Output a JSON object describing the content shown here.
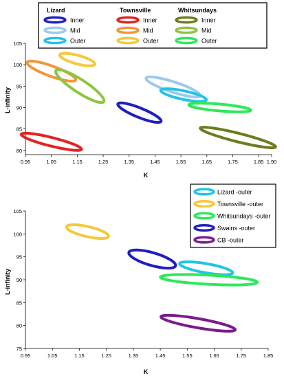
{
  "chart_data": [
    {
      "type": "scatter",
      "xlabel": "K",
      "ylabel": "L-infinity",
      "xlim": [
        0.95,
        1.9
      ],
      "ylim": [
        79,
        105
      ],
      "xticks": [
        "0.95",
        "1.05",
        "1.15",
        "1.25",
        "1.35",
        "1.45",
        "1.55",
        "1.65",
        "1.75",
        "1.85",
        "1.90"
      ],
      "yticks": [
        "80",
        "85",
        "90",
        "95",
        "100",
        "105"
      ],
      "legend": {
        "placement": "top",
        "groups": [
          {
            "title": "Lizard",
            "items": [
              {
                "label": "Inner",
                "color": "#1f1fbf"
              },
              {
                "label": "Mid",
                "color": "#9ec9ee"
              },
              {
                "label": "Outer",
                "color": "#22c4e6"
              }
            ]
          },
          {
            "title": "Townsville",
            "items": [
              {
                "label": "Inner",
                "color": "#e32222"
              },
              {
                "label": "Mid",
                "color": "#f0963a"
              },
              {
                "label": "Outer",
                "color": "#f5c93c"
              }
            ]
          },
          {
            "title": "Whitsundays",
            "items": [
              {
                "label": "Inner",
                "color": "#6b7d1e"
              },
              {
                "label": "Mid",
                "color": "#8cc63f"
              },
              {
                "label": "Outer",
                "color": "#2ee85a"
              }
            ]
          }
        ]
      },
      "series": [
        {
          "label": "Lizard Inner",
          "color": "#1f1fbf",
          "cx": 1.39,
          "cy": 88.8,
          "rx": 0.09,
          "ry": 1.1,
          "angle": 22
        },
        {
          "label": "Lizard Mid",
          "color": "#9ec9ee",
          "cx": 1.52,
          "cy": 94.8,
          "rx": 0.11,
          "ry": 1.2,
          "angle": 18
        },
        {
          "label": "Lizard Outer",
          "color": "#22c4e6",
          "cx": 1.56,
          "cy": 92.9,
          "rx": 0.09,
          "ry": 1.0,
          "angle": 12
        },
        {
          "label": "Townsville Inner",
          "color": "#e32222",
          "cx": 1.05,
          "cy": 82.0,
          "rx": 0.12,
          "ry": 1.0,
          "angle": 14
        },
        {
          "label": "Townsville Mid",
          "color": "#f0963a",
          "cx": 1.05,
          "cy": 98.5,
          "rx": 0.1,
          "ry": 1.2,
          "angle": 20
        },
        {
          "label": "Townsville Outer",
          "color": "#f5c93c",
          "cx": 1.15,
          "cy": 101.2,
          "rx": 0.07,
          "ry": 1.0,
          "angle": 15
        },
        {
          "label": "Whitsundays Inner",
          "color": "#6b7d1e",
          "cx": 1.77,
          "cy": 83.0,
          "rx": 0.15,
          "ry": 1.0,
          "angle": 14
        },
        {
          "label": "Whitsundays Mid",
          "color": "#8cc63f",
          "cx": 1.16,
          "cy": 95.0,
          "rx": 0.11,
          "ry": 1.5,
          "angle": 33
        },
        {
          "label": "Whitsundays Outer",
          "color": "#2ee85a",
          "cx": 1.7,
          "cy": 90.0,
          "rx": 0.12,
          "ry": 0.8,
          "angle": 5
        }
      ]
    },
    {
      "type": "scatter",
      "xlabel": "K",
      "ylabel": "L-infinity",
      "xlim": [
        0.95,
        1.85
      ],
      "ylim": [
        75,
        105
      ],
      "xticks": [
        "0.95",
        "1.05",
        "1.15",
        "1.25",
        "1.35",
        "1.45",
        "1.55",
        "1.65",
        "1.75",
        "1.85"
      ],
      "yticks": [
        "75",
        "80",
        "85",
        "90",
        "95",
        "100",
        "105"
      ],
      "legend": {
        "placement": "top-right",
        "items": [
          {
            "label": "Lizard -outer",
            "color": "#22c4e6"
          },
          {
            "label": "Townsville -outer",
            "color": "#f5c93c"
          },
          {
            "label": "Whitsundays -outer",
            "color": "#2ee85a"
          },
          {
            "label": "Swains -outer",
            "color": "#1f1fbf"
          },
          {
            "label": "CB -outer",
            "color": "#7a1b8c"
          }
        ]
      },
      "series": [
        {
          "label": "Lizard -outer",
          "color": "#22c4e6",
          "cx": 1.62,
          "cy": 92.5,
          "rx": 0.1,
          "ry": 1.0,
          "angle": 10
        },
        {
          "label": "Townsville -outer",
          "color": "#f5c93c",
          "cx": 1.18,
          "cy": 100.5,
          "rx": 0.08,
          "ry": 1.1,
          "angle": 13
        },
        {
          "label": "Whitsundays -outer",
          "color": "#2ee85a",
          "cx": 1.63,
          "cy": 90.0,
          "rx": 0.18,
          "ry": 1.0,
          "angle": 3
        },
        {
          "label": "Swains -outer",
          "color": "#1f1fbf",
          "cx": 1.42,
          "cy": 94.5,
          "rx": 0.09,
          "ry": 1.4,
          "angle": 16
        },
        {
          "label": "CB -outer",
          "color": "#7a1b8c",
          "cx": 1.59,
          "cy": 80.5,
          "rx": 0.14,
          "ry": 1.0,
          "angle": 10
        }
      ]
    }
  ]
}
